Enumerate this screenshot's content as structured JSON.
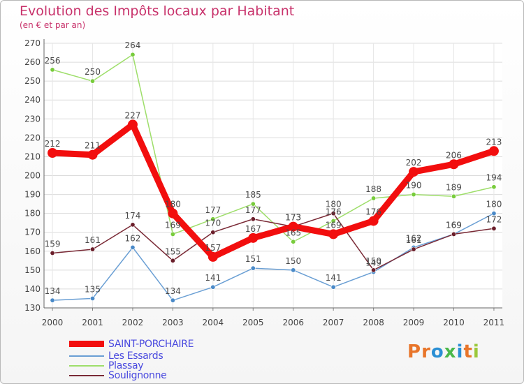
{
  "chart_data": {
    "type": "line",
    "title": "Evolution des Impôts locaux par Habitant",
    "subtitle": "(en € et par an)",
    "x": [
      "2000",
      "2001",
      "2002",
      "2003",
      "2004",
      "2005",
      "2006",
      "2007",
      "2008",
      "2009",
      "2010",
      "2011"
    ],
    "ylim": [
      130,
      270
    ],
    "yticks": [
      130,
      140,
      150,
      160,
      170,
      180,
      190,
      200,
      210,
      220,
      230,
      240,
      250,
      260,
      270
    ],
    "grid": true,
    "series": [
      {
        "name": "Les Essards",
        "color": "#6a9fd4",
        "point_color": "#4a8ac8",
        "values": [
          134,
          135,
          162,
          134,
          141,
          151,
          150,
          141,
          149,
          162,
          169,
          180
        ]
      },
      {
        "name": "Plassay",
        "color": "#9ede6a",
        "point_color": "#78cc3c",
        "values": [
          256,
          250,
          264,
          169,
          177,
          185,
          165,
          176,
          188,
          190,
          189,
          194
        ]
      },
      {
        "name": "Soulignonne",
        "color": "#7a2a36",
        "point_color": "#6a1e2a",
        "values": [
          159,
          161,
          174,
          155,
          170,
          177,
          173,
          180,
          150,
          161,
          169,
          172
        ]
      },
      {
        "name": "SAINT-PORCHAIRE",
        "color": "#f20e0e",
        "point_color": "#f20e0e",
        "values": [
          212,
          211,
          227,
          180,
          157,
          167,
          173,
          169,
          176,
          202,
          206,
          213
        ]
      }
    ],
    "data_labels": [
      {
        "series": "Les Essards",
        "labels": [
          "134",
          "135",
          "162",
          "134",
          "141",
          "151",
          "150",
          "141",
          "149",
          "162",
          "169",
          "180"
        ]
      },
      {
        "series": "Plassay",
        "labels": [
          "256",
          "250",
          "264",
          "169",
          "177",
          "185",
          "165",
          "176",
          "188",
          "190",
          "189",
          "194"
        ]
      },
      {
        "series": "Soulignonne",
        "labels": [
          "159",
          "161",
          "174",
          "155",
          "170",
          "177",
          "173",
          "180",
          "150",
          "161",
          "169",
          "172"
        ]
      },
      {
        "series": "SAINT-PORCHAIRE",
        "labels": [
          "212",
          "211",
          "227",
          "180",
          "157",
          "167",
          "173",
          "169",
          "176",
          "202",
          "206",
          "213"
        ]
      }
    ],
    "legend": [
      "SAINT-PORCHAIRE",
      "Les Essards",
      "Plassay",
      "Soulignonne"
    ]
  },
  "logo": {
    "text": "Proxiti",
    "letter_colors": [
      "#e8752a",
      "#e8752a",
      "#2a8fd4",
      "#4ab84a",
      "#2a8fd4",
      "#e8752a",
      "#9ac83a"
    ]
  }
}
